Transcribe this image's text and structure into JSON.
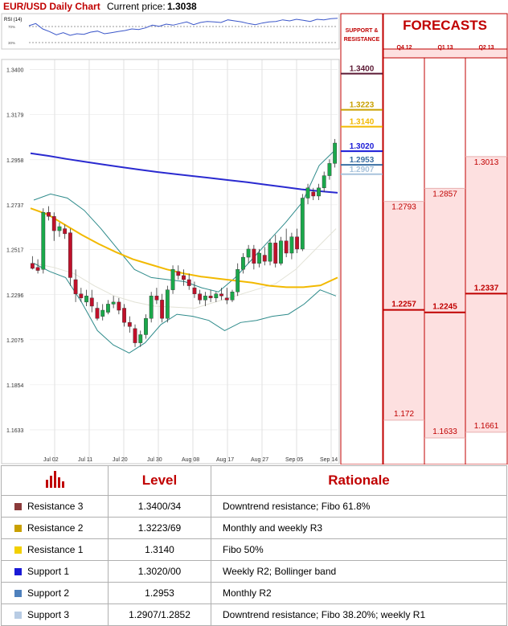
{
  "header": {
    "title": "EUR/USD Daily Chart",
    "price_label": "Current price:",
    "price_value": "1.3038"
  },
  "chart_data": [
    {
      "type": "line",
      "title": "RSI (14)",
      "ylim": [
        20,
        80
      ],
      "yticks": [
        "70%",
        "30%"
      ],
      "series": [
        {
          "values": [
            62,
            66,
            56,
            51,
            45,
            49,
            44,
            47,
            46,
            50,
            52,
            47,
            49,
            51,
            53,
            56,
            55,
            58,
            63,
            61,
            65,
            63,
            66,
            69,
            64,
            68,
            70,
            69,
            68,
            73,
            71,
            69,
            66,
            64,
            67,
            69,
            70,
            73,
            71,
            74,
            72,
            70,
            74,
            73,
            75,
            76
          ]
        }
      ],
      "color": "#3a56c9"
    },
    {
      "type": "candlestick",
      "ylim": [
        1.155,
        1.345
      ],
      "yticks": [
        "1.3400",
        "1.3179",
        "1.2958",
        "1.2737",
        "1.2517",
        "1.2296",
        "1.2075",
        "1.1854",
        "1.1633"
      ],
      "xticks": [
        "Jul 02",
        "Jul 11",
        "Jul 20",
        "Jul 30",
        "Aug 08",
        "Aug 17",
        "Aug 27",
        "Sep 05",
        "Sep 14"
      ],
      "grid": true,
      "candles": [
        [
          1.245,
          1.2485,
          1.242,
          1.2425
        ],
        [
          1.243,
          1.247,
          1.24,
          1.2415
        ],
        [
          1.242,
          1.272,
          1.24,
          1.27
        ],
        [
          1.27,
          1.273,
          1.266,
          1.268
        ],
        [
          1.268,
          1.27,
          1.256,
          1.261
        ],
        [
          1.261,
          1.265,
          1.258,
          1.263
        ],
        [
          1.262,
          1.264,
          1.257,
          1.2595
        ],
        [
          1.26,
          1.262,
          1.234,
          1.238
        ],
        [
          1.237,
          1.242,
          1.226,
          1.23
        ],
        [
          1.23,
          1.233,
          1.226,
          1.228
        ],
        [
          1.226,
          1.232,
          1.224,
          1.229
        ],
        [
          1.228,
          1.232,
          1.221,
          1.224
        ],
        [
          1.223,
          1.226,
          1.217,
          1.218
        ],
        [
          1.219,
          1.225,
          1.217,
          1.222
        ],
        [
          1.221,
          1.227,
          1.22,
          1.225
        ],
        [
          1.225,
          1.229,
          1.223,
          1.226
        ],
        [
          1.226,
          1.228,
          1.22,
          1.222
        ],
        [
          1.223,
          1.225,
          1.214,
          1.216
        ],
        [
          1.216,
          1.219,
          1.211,
          1.214
        ],
        [
          1.213,
          1.215,
          1.204,
          1.206
        ],
        [
          1.206,
          1.212,
          1.204,
          1.21
        ],
        [
          1.21,
          1.22,
          1.208,
          1.218
        ],
        [
          1.218,
          1.231,
          1.216,
          1.229
        ],
        [
          1.229,
          1.233,
          1.225,
          1.227
        ],
        [
          1.227,
          1.23,
          1.216,
          1.218
        ],
        [
          1.218,
          1.234,
          1.216,
          1.232
        ],
        [
          1.232,
          1.244,
          1.23,
          1.242
        ],
        [
          1.241,
          1.244,
          1.237,
          1.239
        ],
        [
          1.239,
          1.242,
          1.234,
          1.237
        ],
        [
          1.237,
          1.24,
          1.232,
          1.234
        ],
        [
          1.233,
          1.236,
          1.228,
          1.23
        ],
        [
          1.23,
          1.232,
          1.225,
          1.227
        ],
        [
          1.227,
          1.231,
          1.224,
          1.229
        ],
        [
          1.229,
          1.232,
          1.226,
          1.228
        ],
        [
          1.228,
          1.231,
          1.226,
          1.23
        ],
        [
          1.23,
          1.233,
          1.227,
          1.229
        ],
        [
          1.228,
          1.233,
          1.225,
          1.227
        ],
        [
          1.227,
          1.232,
          1.226,
          1.231
        ],
        [
          1.231,
          1.245,
          1.229,
          1.242
        ],
        [
          1.242,
          1.25,
          1.24,
          1.248
        ],
        [
          1.248,
          1.254,
          1.245,
          1.252
        ],
        [
          1.252,
          1.254,
          1.242,
          1.245
        ],
        [
          1.245,
          1.252,
          1.243,
          1.25
        ],
        [
          1.249,
          1.253,
          1.244,
          1.246
        ],
        [
          1.246,
          1.257,
          1.244,
          1.255
        ],
        [
          1.255,
          1.259,
          1.243,
          1.245
        ],
        [
          1.245,
          1.258,
          1.244,
          1.256
        ],
        [
          1.256,
          1.262,
          1.248,
          1.25
        ],
        [
          1.25,
          1.26,
          1.247,
          1.258
        ],
        [
          1.258,
          1.262,
          1.25,
          1.252
        ],
        [
          1.252,
          1.279,
          1.251,
          1.277
        ],
        [
          1.277,
          1.284,
          1.274,
          1.282
        ],
        [
          1.28,
          1.282,
          1.276,
          1.278
        ],
        [
          1.278,
          1.284,
          1.276,
          1.282
        ],
        [
          1.282,
          1.29,
          1.28,
          1.288
        ],
        [
          1.288,
          1.296,
          1.286,
          1.294
        ],
        [
          1.294,
          1.306,
          1.292,
          1.304
        ]
      ],
      "ma200": [
        1.299,
        1.2977,
        1.2962,
        1.2948,
        1.2935,
        1.2922,
        1.291,
        1.2898,
        1.2888,
        1.2878,
        1.2868,
        1.2858,
        1.2848,
        1.2836,
        1.2825,
        1.2813,
        1.2804,
        1.2796
      ],
      "ma50": [
        1.272,
        1.269,
        1.264,
        1.259,
        1.2545,
        1.2505,
        1.247,
        1.2445,
        1.242,
        1.24,
        1.2385,
        1.2375,
        1.2365,
        1.2355,
        1.234,
        1.2333,
        1.2333,
        1.2342,
        1.238
      ],
      "bb_upper": [
        1.276,
        1.279,
        1.277,
        1.271,
        1.262,
        1.252,
        1.242,
        1.238,
        1.237,
        1.236,
        1.233,
        1.231,
        1.238,
        1.247,
        1.256,
        1.265,
        1.275,
        1.293,
        1.301
      ],
      "bb_lower": [
        1.245,
        1.241,
        1.238,
        1.226,
        1.212,
        1.205,
        1.201,
        1.206,
        1.215,
        1.22,
        1.219,
        1.217,
        1.212,
        1.216,
        1.217,
        1.219,
        1.22,
        1.225,
        1.232,
        1.229
      ],
      "bb_mid": [
        1.245,
        1.243,
        1.24,
        1.234,
        1.229,
        1.226,
        1.224,
        1.2235,
        1.223,
        1.226,
        1.229,
        1.232,
        1.235,
        1.242,
        1.252,
        1.262
      ]
    },
    {
      "type": "table",
      "title": "FORECASTS",
      "columns": [
        "Q4 12",
        "Q1 13",
        "Q2 13"
      ],
      "ylim": [
        1.155,
        1.345
      ],
      "forecasts": [
        {
          "quarter": "Q4 12",
          "high": "1.2793",
          "mid": "1.2257",
          "low": "1.172"
        },
        {
          "quarter": "Q1 13",
          "high": "1.2857",
          "mid": "1.2245",
          "low": "1.1633"
        },
        {
          "quarter": "Q2 13",
          "high": "1.3013",
          "mid": "1.2337",
          "low": "1.1661"
        }
      ]
    }
  ],
  "support_panel": {
    "title_line1": "SUPPORT &",
    "title_line2": "RESISTANCE",
    "levels": [
      {
        "value": "1.3400",
        "color": "#5c1a35"
      },
      {
        "value": "1.3223",
        "color": "#c9a000"
      },
      {
        "value": "1.3140",
        "color": "#f2b900"
      },
      {
        "value": "1.3020",
        "color": "#1a1ad6"
      },
      {
        "value": "1.2953",
        "color": "#3a6fa3"
      },
      {
        "value": "1.2907",
        "color": "#a8c3dc"
      }
    ]
  },
  "table": {
    "level_header": "Level",
    "rationale_header": "Rationale",
    "rows": [
      {
        "name": "Resistance 3",
        "color": "#8b3a3a",
        "level": "1.3400/34",
        "rationale": "Downtrend resistance; Fibo 61.8%"
      },
      {
        "name": "Resistance 2",
        "color": "#c9a000",
        "level": "1.3223/69",
        "rationale": "Monthly and weekly R3"
      },
      {
        "name": "Resistance 1",
        "color": "#f2d000",
        "level": "1.3140",
        "rationale": "Fibo 50%"
      },
      {
        "name": "Support 1",
        "color": "#1a1ad6",
        "level": "1.3020/00",
        "rationale": "Weekly R2; Bollinger band"
      },
      {
        "name": "Support 2",
        "color": "#4f81bd",
        "level": "1.2953",
        "rationale": "Monthly R2"
      },
      {
        "name": "Support 3",
        "color": "#b8cce4",
        "level": "1.2907/1.2852",
        "rationale": "Downtrend resistance; Fibo 38.20%; weekly R1"
      }
    ]
  }
}
